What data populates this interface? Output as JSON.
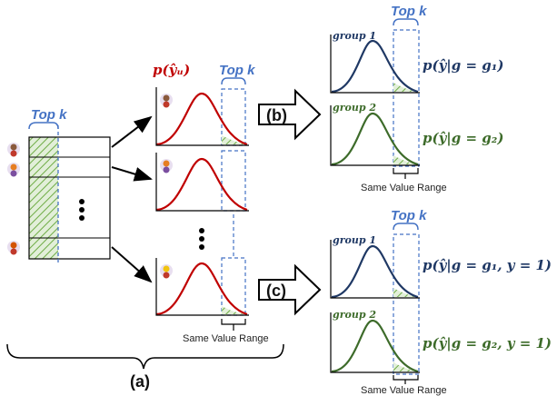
{
  "labels": {
    "top_k": "Top k",
    "p_y_u": "p(ŷᵤ)",
    "same_value_range": "Same Value Range",
    "step_a": "(a)",
    "step_b": "(b)",
    "step_c": "(c)"
  },
  "panels_b": [
    {
      "group": "group 1",
      "formula": "p(ŷ|g = g₁)",
      "color": "#1f3864"
    },
    {
      "group": "group 2",
      "formula": "p(ŷ|g = g₂)",
      "color": "#3d6b2a"
    }
  ],
  "panels_c": [
    {
      "group": "group 1",
      "formula": "p(ŷ|g = g₁, y = 1)",
      "color": "#1f3864"
    },
    {
      "group": "group 2",
      "formula": "p(ŷ|g = g₂, y = 1)",
      "color": "#3d6b2a"
    }
  ],
  "colors": {
    "red_curve": "#c00000",
    "topk_blue": "#4472c4",
    "hatch_green": "#70ad47"
  }
}
